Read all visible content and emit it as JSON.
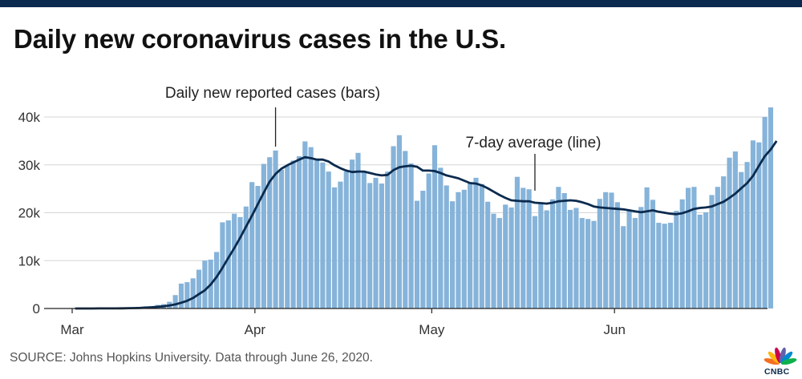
{
  "header": {
    "title": "Daily new coronavirus cases in the U.S.",
    "bar_color": "#0b2a4e"
  },
  "footer": {
    "source": "SOURCE: Johns Hopkins University. Data through June 26, 2020.",
    "logo_text": "CNBC"
  },
  "chart_data": {
    "type": "bar",
    "title": "Daily new coronavirus cases in the U.S.",
    "xlabel": "",
    "ylabel": "",
    "ylim": [
      0,
      40000
    ],
    "yticks": [
      0,
      10000,
      20000,
      30000,
      40000
    ],
    "ytick_labels": [
      "0",
      "10k",
      "20k",
      "30k",
      "40k"
    ],
    "x_tick_labels": [
      {
        "label": "Mar",
        "index": 0
      },
      {
        "label": "Apr",
        "index": 31
      },
      {
        "label": "May",
        "index": 61
      },
      {
        "label": "Jun",
        "index": 92
      }
    ],
    "grid": true,
    "bar_color": "#86b3d9",
    "line_color": "#0b2a4e",
    "annotations": [
      {
        "text": "Daily new reported cases (bars)",
        "target_index": 34
      },
      {
        "text": "7-day average (line)",
        "target_index": 78
      }
    ],
    "series": [
      {
        "name": "Daily new reported cases (bars)",
        "values": [
          2,
          5,
          9,
          15,
          21,
          18,
          50,
          59,
          103,
          141,
          210,
          250,
          450,
          520,
          740,
          920,
          1400,
          2800,
          5200,
          5500,
          6300,
          8100,
          10000,
          10200,
          11800,
          18000,
          18400,
          19800,
          19100,
          21300,
          26400,
          25600,
          30200,
          31600,
          33000,
          29000,
          29800,
          30900,
          31800,
          34900,
          33700,
          31300,
          30500,
          28600,
          25300,
          26500,
          28600,
          31100,
          32500,
          28500,
          26200,
          27300,
          26100,
          28600,
          33900,
          36200,
          32900,
          30300,
          22500,
          24600,
          28200,
          34100,
          29400,
          25700,
          22400,
          24300,
          24800,
          26400,
          27300,
          26000,
          22300,
          19800,
          18900,
          21700,
          21100,
          27500,
          25200,
          24900,
          19300,
          21900,
          20500,
          22800,
          25400,
          24100,
          20600,
          21000,
          18900,
          18700,
          18300,
          22900,
          24300,
          24200,
          22200,
          17200,
          20500,
          18900,
          21200,
          25300,
          22700,
          17900,
          17700,
          17900,
          20400,
          22800,
          25200,
          25400,
          19600,
          20100,
          23700,
          25400,
          27600,
          31500,
          32800,
          28500,
          30600,
          35100,
          34700,
          40000,
          42000
        ]
      },
      {
        "name": "7-day average (line)",
        "values": [
          2,
          4,
          5,
          8,
          11,
          13,
          17,
          23,
          40,
          61,
          90,
          122,
          188,
          254,
          346,
          458,
          611,
          849,
          1200,
          1600,
          2200,
          3000,
          3800,
          5000,
          6600,
          8500,
          10600,
          12600,
          14800,
          17100,
          19400,
          21800,
          24200,
          26500,
          28100,
          29200,
          29900,
          30500,
          31100,
          31600,
          31400,
          31100,
          31100,
          30700,
          29900,
          29300,
          28800,
          28500,
          28600,
          28600,
          28300,
          28000,
          27800,
          27900,
          28900,
          29500,
          29700,
          29800,
          29600,
          28800,
          28800,
          28700,
          28300,
          27800,
          27500,
          27200,
          26700,
          26200,
          26100,
          25700,
          25100,
          24400,
          23700,
          23100,
          22600,
          22500,
          22400,
          22400,
          22100,
          22000,
          21900,
          22100,
          22400,
          22500,
          22600,
          22500,
          22200,
          21800,
          21300,
          21100,
          21000,
          20900,
          20800,
          20700,
          20500,
          20300,
          20100,
          20300,
          20500,
          20200,
          20000,
          19800,
          19700,
          19900,
          20300,
          20800,
          21000,
          21100,
          21300,
          21800,
          22300,
          23100,
          24000,
          25100,
          26200,
          27700,
          29800,
          31800,
          33200,
          35000
        ]
      }
    ]
  }
}
